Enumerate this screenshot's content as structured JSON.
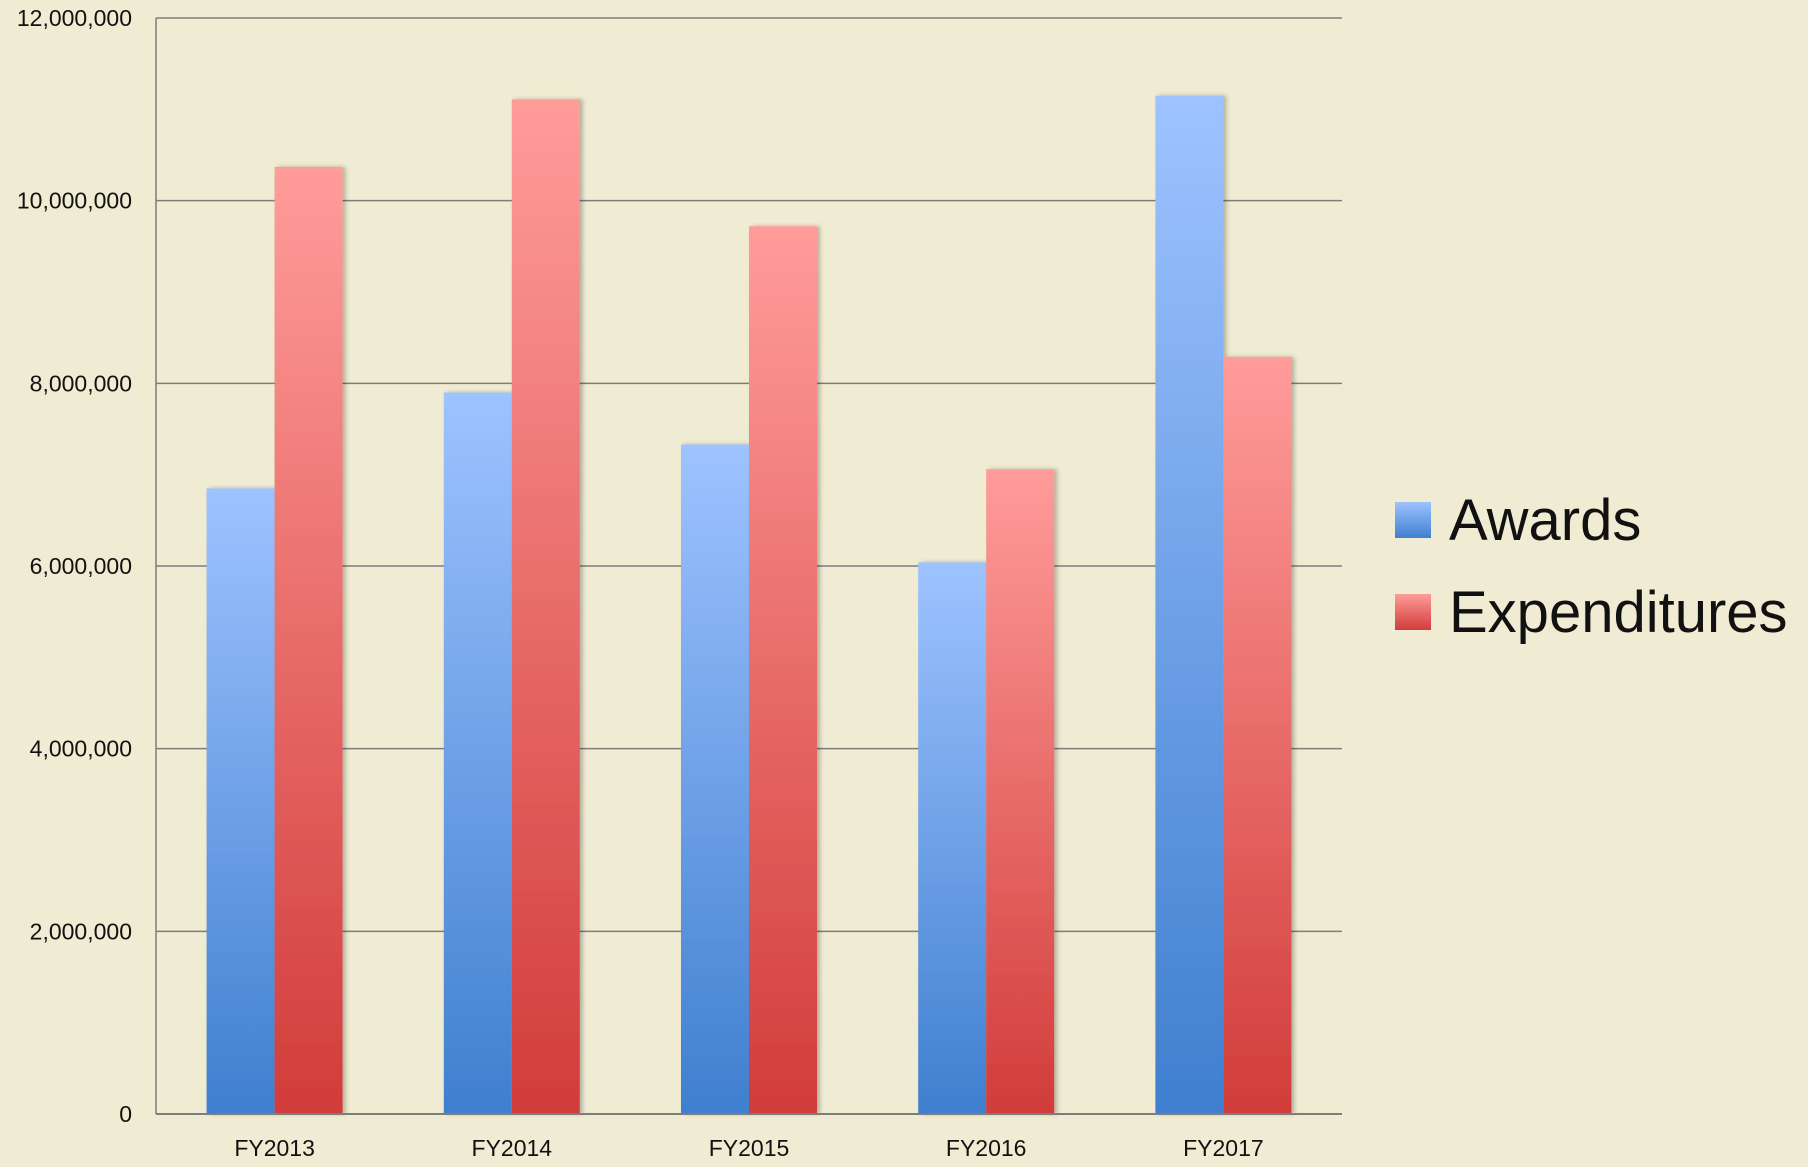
{
  "chart_data": {
    "type": "bar",
    "title": "",
    "xlabel": "",
    "ylabel": "",
    "categories": [
      "FY2013",
      "FY2014",
      "FY2015",
      "FY2016",
      "FY2017"
    ],
    "series": [
      {
        "name": "Awards",
        "values": [
          6850000,
          7900000,
          7330000,
          6040000,
          11150000
        ],
        "color_top": "#9ec3ff",
        "color_bottom": "#3f7fcf"
      },
      {
        "name": "Expenditures",
        "values": [
          10370000,
          11110000,
          9720000,
          7060000,
          8290000
        ],
        "color_top": "#ff9c9a",
        "color_bottom": "#d13c3a"
      }
    ],
    "ylim": [
      0,
      12000000
    ],
    "yticks": [
      0,
      2000000,
      4000000,
      6000000,
      8000000,
      10000000,
      12000000
    ],
    "ytick_labels": [
      "0",
      "2,000,000",
      "4,000,000",
      "6,000,000",
      "8,000,000",
      "10,000,000",
      "12,000,000"
    ],
    "grid": true,
    "legend_position": "right"
  },
  "colors": {
    "background": "#f0ecd3",
    "gridline": "#7d7d7d",
    "axis": "#7d7d7d"
  }
}
